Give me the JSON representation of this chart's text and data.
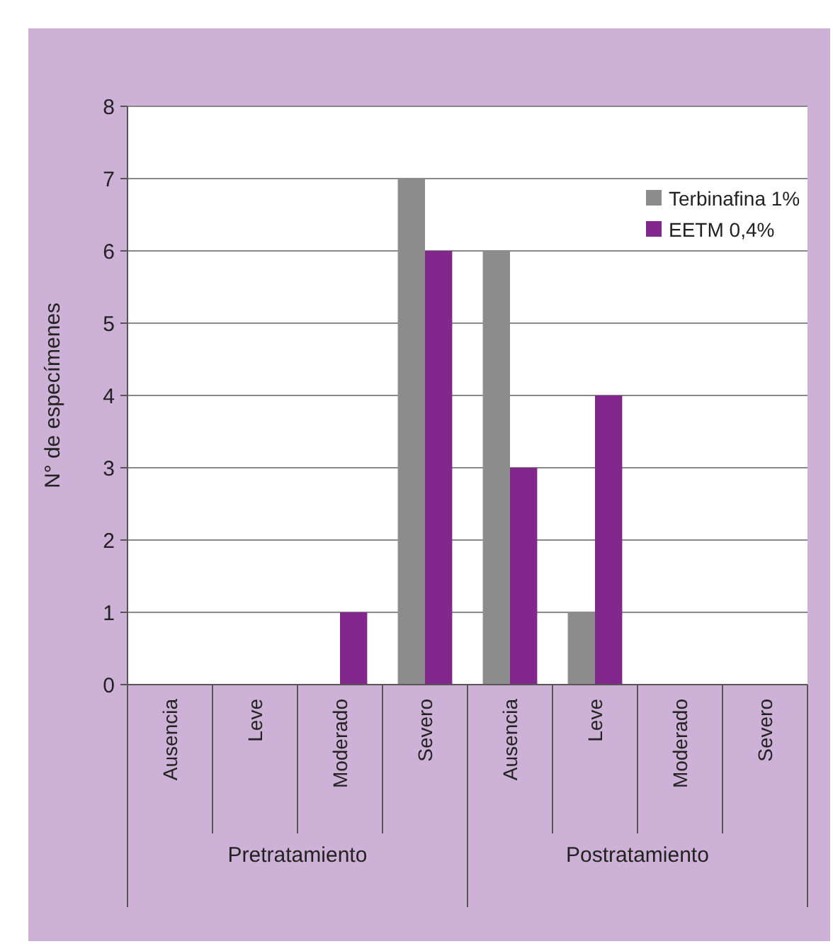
{
  "chart_data": {
    "type": "bar",
    "ylabel": "N° de especímenes",
    "categories": [
      "Ausencia",
      "Leve",
      "Moderado",
      "Severo",
      "Ausencia",
      "Leve",
      "Moderado",
      "Severo"
    ],
    "series": [
      {
        "name": "Terbinafina 1%",
        "color": "#8c8c8c",
        "values": [
          0,
          0,
          0,
          7,
          6,
          1,
          0,
          0
        ]
      },
      {
        "name": "EETM 0,4%",
        "color": "#82288c",
        "values": [
          0,
          0,
          1,
          6,
          3,
          4,
          0,
          0
        ]
      }
    ],
    "ylim": [
      0,
      8
    ],
    "yticks": [
      0,
      1,
      2,
      3,
      4,
      5,
      6,
      7,
      8
    ],
    "grid": "y",
    "legend": "top right",
    "annotations": [
      "Pretratamiento",
      "Postratamiento"
    ]
  }
}
